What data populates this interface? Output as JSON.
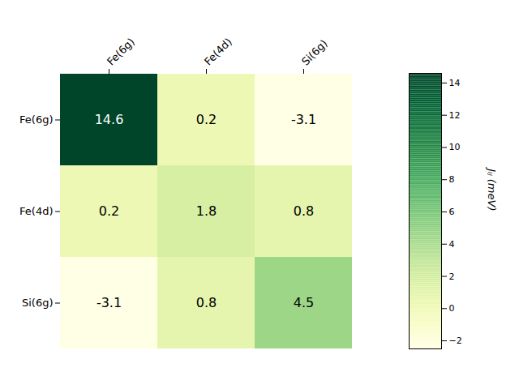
{
  "chart_data": {
    "type": "heatmap",
    "x_categories": [
      "Fe(6g)",
      "Fe(4d)",
      "Si(6g)"
    ],
    "y_categories": [
      "Fe(6g)",
      "Fe(4d)",
      "Si(6g)"
    ],
    "values": [
      [
        14.6,
        0.2,
        -3.1
      ],
      [
        0.2,
        1.8,
        0.8
      ],
      [
        -3.1,
        0.8,
        4.5
      ]
    ],
    "color": "YlGn",
    "colorbar_range": [
      -2.5,
      14.6
    ],
    "colorbar_ticks": [
      -2,
      0,
      2,
      4,
      6,
      8,
      10,
      12,
      14
    ],
    "colorbar_label": "Jᵢⱼ (meV)",
    "data_labels": true
  }
}
